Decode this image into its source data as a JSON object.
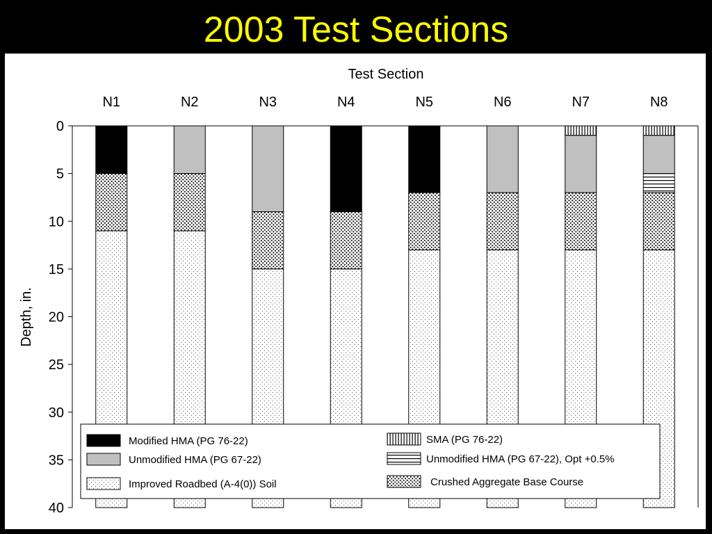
{
  "slide": {
    "title": "2003 Test Sections"
  },
  "colors": {
    "background": "#000000",
    "title": "#ffff00",
    "panel": "#ffffff",
    "unmodified_gray": "#c0c0c0",
    "modified_black": "#000000"
  },
  "chart_data": {
    "type": "bar",
    "stacked": true,
    "y_inverted": true,
    "title": "Test Section",
    "xlabel": "",
    "ylabel": "Depth, in.",
    "ylim": [
      0,
      40
    ],
    "yticks": [
      "0",
      "5",
      "10",
      "15",
      "20",
      "25",
      "30",
      "35",
      "40"
    ],
    "categories": [
      "N1",
      "N2",
      "N3",
      "N4",
      "N5",
      "N6",
      "N7",
      "N8"
    ],
    "layer_types": [
      {
        "key": "sma",
        "label": "SMA (PG 76-22)",
        "pattern": "vertical-lines"
      },
      {
        "key": "modified",
        "label": "Modified HMA (PG 76-22)",
        "pattern": "solid-black"
      },
      {
        "key": "unmodified",
        "label": "Unmodified HMA (PG 67-22)",
        "pattern": "solid-gray"
      },
      {
        "key": "unmod_opt",
        "label": "Unmodified HMA (PG 67-22), Opt +0.5%",
        "pattern": "horizontal-lines"
      },
      {
        "key": "base",
        "label": "Crushed Aggregate Base Course",
        "pattern": "dense-dots"
      },
      {
        "key": "soil",
        "label": "Improved Roadbed (A-4(0)) Soil",
        "pattern": "sparse-dots"
      }
    ],
    "sections": [
      {
        "name": "N1",
        "layers": [
          {
            "type": "modified",
            "top": 0,
            "bottom": 5
          },
          {
            "type": "base",
            "top": 5,
            "bottom": 11
          },
          {
            "type": "soil",
            "top": 11,
            "bottom": 40
          }
        ]
      },
      {
        "name": "N2",
        "layers": [
          {
            "type": "unmodified",
            "top": 0,
            "bottom": 5
          },
          {
            "type": "base",
            "top": 5,
            "bottom": 11
          },
          {
            "type": "soil",
            "top": 11,
            "bottom": 40
          }
        ]
      },
      {
        "name": "N3",
        "layers": [
          {
            "type": "unmodified",
            "top": 0,
            "bottom": 9
          },
          {
            "type": "base",
            "top": 9,
            "bottom": 15
          },
          {
            "type": "soil",
            "top": 15,
            "bottom": 40
          }
        ]
      },
      {
        "name": "N4",
        "layers": [
          {
            "type": "modified",
            "top": 0,
            "bottom": 9
          },
          {
            "type": "base",
            "top": 9,
            "bottom": 15
          },
          {
            "type": "soil",
            "top": 15,
            "bottom": 40
          }
        ]
      },
      {
        "name": "N5",
        "layers": [
          {
            "type": "modified",
            "top": 0,
            "bottom": 7
          },
          {
            "type": "base",
            "top": 7,
            "bottom": 13
          },
          {
            "type": "soil",
            "top": 13,
            "bottom": 40
          }
        ]
      },
      {
        "name": "N6",
        "layers": [
          {
            "type": "unmodified",
            "top": 0,
            "bottom": 7
          },
          {
            "type": "base",
            "top": 7,
            "bottom": 13
          },
          {
            "type": "soil",
            "top": 13,
            "bottom": 40
          }
        ]
      },
      {
        "name": "N7",
        "layers": [
          {
            "type": "sma",
            "top": 0,
            "bottom": 1
          },
          {
            "type": "unmodified",
            "top": 1,
            "bottom": 7
          },
          {
            "type": "base",
            "top": 7,
            "bottom": 13
          },
          {
            "type": "soil",
            "top": 13,
            "bottom": 40
          }
        ]
      },
      {
        "name": "N8",
        "layers": [
          {
            "type": "sma",
            "top": 0,
            "bottom": 1
          },
          {
            "type": "unmodified",
            "top": 1,
            "bottom": 5
          },
          {
            "type": "unmod_opt",
            "top": 5,
            "bottom": 7
          },
          {
            "type": "base",
            "top": 7,
            "bottom": 13
          },
          {
            "type": "soil",
            "top": 13,
            "bottom": 40
          }
        ]
      }
    ],
    "legend": {
      "placement": "bottom",
      "left_column": [
        "modified",
        "unmodified",
        "soil"
      ],
      "right_column": [
        "sma",
        "unmod_opt",
        "base"
      ]
    }
  }
}
